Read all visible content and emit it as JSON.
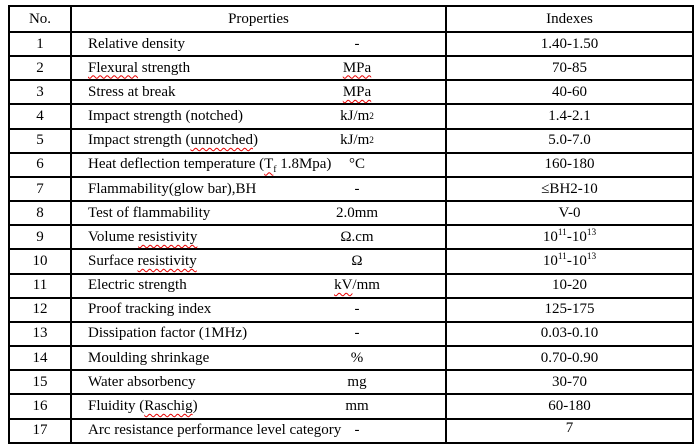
{
  "colors": {
    "background": "#ffffff",
    "text": "#000000",
    "border": "#000000",
    "squiggle": "#e60000"
  },
  "table": {
    "headers": {
      "no": "No.",
      "properties": "Properties",
      "indexes": "Indexes"
    },
    "rows": [
      {
        "no": "1",
        "property": "Relative density",
        "unit": "-",
        "index": "1.40-1.50"
      },
      {
        "no": "2",
        "property": "~{Flexural} strength",
        "unit": "~{MPa}",
        "index": "70-85"
      },
      {
        "no": "3",
        "property": "Stress at break",
        "unit": "~{MPa}",
        "index": "40-60"
      },
      {
        "no": "4",
        "property": "Impact strength (notched)",
        "unit": "kJ/m^{2}",
        "index": "1.4-2.1"
      },
      {
        "no": "5",
        "property": "Impact strength (~{unnotched})",
        "unit": "kJ/m^{2}",
        "index": "5.0-7.0"
      },
      {
        "no": "6",
        "property": "Heat deflection temperature (~{T_{f}} 1.8Mpa)",
        "unit": "°C",
        "index": "160-180"
      },
      {
        "no": "7",
        "property": "Flammability(glow bar),BH",
        "unit": "-",
        "index": "≤BH2-10"
      },
      {
        "no": "8",
        "property": "Test of flammability",
        "unit": "2.0mm",
        "index": "V-0"
      },
      {
        "no": "9",
        "property": "Volume ~{resistivity}",
        "unit": "Ω.cm",
        "index": "10^{11}-10^{13}"
      },
      {
        "no": "10",
        "property": "Surface ~{resistivity}",
        "unit": "Ω",
        "index": "10^{11}-10^{13}"
      },
      {
        "no": "11",
        "property": "Electric strength",
        "unit": "~{kV}/mm",
        "index": "10-20"
      },
      {
        "no": "12",
        "property": "Proof tracking index",
        "unit": "-",
        "index": "125-175"
      },
      {
        "no": "13",
        "property": "Dissipation factor (1MHz)",
        "unit": "-",
        "index": "0.03-0.10"
      },
      {
        "no": "14",
        "property": "Moulding shrinkage",
        "unit": "%",
        "index": "0.70-0.90"
      },
      {
        "no": "15",
        "property": "Water absorbency",
        "unit": "mg",
        "index": "30-70"
      },
      {
        "no": "16",
        "property": "Fluidity (~{Raschig})",
        "unit": "mm",
        "index": "60-180"
      },
      {
        "no": "17",
        "property": "Arc resistance performance level category",
        "unit": "-",
        "index": "7"
      }
    ]
  }
}
